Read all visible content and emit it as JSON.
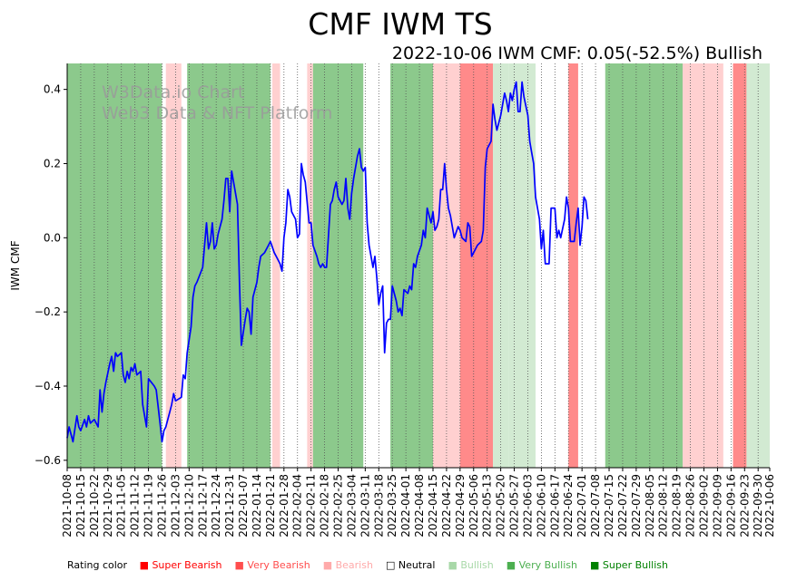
{
  "chart_data": {
    "type": "line",
    "title": "CMF IWM TS",
    "subtitle": "2022-10-06 IWM CMF: 0.05(-52.5%) Bullish",
    "ylabel": "IWM CMF",
    "xlabel": "",
    "ylim": [
      -0.62,
      0.47
    ],
    "yticks": [
      -0.6,
      -0.4,
      -0.2,
      0.0,
      0.2,
      0.4
    ],
    "ytick_labels": [
      "−0.6",
      "−0.4",
      "−0.2",
      "0.0",
      "0.2",
      "0.4"
    ],
    "x_start": "2021-10-08",
    "x_end": "2022-10-06",
    "xtick_labels": [
      "2021-10-08",
      "2021-10-15",
      "2021-10-22",
      "2021-10-29",
      "2021-11-05",
      "2021-11-12",
      "2021-11-19",
      "2021-11-26",
      "2021-12-03",
      "2021-12-10",
      "2021-12-17",
      "2021-12-24",
      "2021-12-31",
      "2022-01-07",
      "2022-01-14",
      "2022-01-21",
      "2022-01-28",
      "2022-02-04",
      "2022-02-11",
      "2022-02-18",
      "2022-02-25",
      "2022-03-04",
      "2022-03-11",
      "2022-03-18",
      "2022-03-25",
      "2022-04-01",
      "2022-04-08",
      "2022-04-15",
      "2022-04-22",
      "2022-04-29",
      "2022-05-06",
      "2022-05-13",
      "2022-05-20",
      "2022-05-27",
      "2022-06-03",
      "2022-06-10",
      "2022-06-17",
      "2022-06-24",
      "2022-07-01",
      "2022-07-08",
      "2022-07-15",
      "2022-07-22",
      "2022-07-29",
      "2022-08-05",
      "2022-08-12",
      "2022-08-19",
      "2022-08-26",
      "2022-09-02",
      "2022-09-09",
      "2022-09-16",
      "2022-09-23",
      "2022-09-30",
      "2022-10-06"
    ],
    "series": [
      {
        "name": "IWM CMF",
        "color": "#0000ff",
        "points": [
          [
            "2021-10-08",
            -0.54
          ],
          [
            "2021-10-09",
            -0.51
          ],
          [
            "2021-10-11",
            -0.55
          ],
          [
            "2021-10-13",
            -0.48
          ],
          [
            "2021-10-14",
            -0.51
          ],
          [
            "2021-10-15",
            -0.52
          ],
          [
            "2021-10-17",
            -0.49
          ],
          [
            "2021-10-18",
            -0.51
          ],
          [
            "2021-10-19",
            -0.48
          ],
          [
            "2021-10-20",
            -0.5
          ],
          [
            "2021-10-22",
            -0.49
          ],
          [
            "2021-10-24",
            -0.51
          ],
          [
            "2021-10-25",
            -0.41
          ],
          [
            "2021-10-26",
            -0.47
          ],
          [
            "2021-10-27",
            -0.42
          ],
          [
            "2021-10-28",
            -0.39
          ],
          [
            "2021-10-30",
            -0.34
          ],
          [
            "2021-10-31",
            -0.32
          ],
          [
            "2021-11-01",
            -0.36
          ],
          [
            "2021-11-02",
            -0.31
          ],
          [
            "2021-11-03",
            -0.32
          ],
          [
            "2021-11-05",
            -0.31
          ],
          [
            "2021-11-06",
            -0.37
          ],
          [
            "2021-11-07",
            -0.39
          ],
          [
            "2021-11-08",
            -0.36
          ],
          [
            "2021-11-09",
            -0.38
          ],
          [
            "2021-11-10",
            -0.35
          ],
          [
            "2021-11-11",
            -0.36
          ],
          [
            "2021-11-12",
            -0.34
          ],
          [
            "2021-11-13",
            -0.37
          ],
          [
            "2021-11-15",
            -0.36
          ],
          [
            "2021-11-16",
            -0.45
          ],
          [
            "2021-11-17",
            -0.48
          ],
          [
            "2021-11-18",
            -0.51
          ],
          [
            "2021-11-19",
            -0.38
          ],
          [
            "2021-11-22",
            -0.4
          ],
          [
            "2021-11-23",
            -0.41
          ],
          [
            "2021-11-25",
            -0.5
          ],
          [
            "2021-11-26",
            -0.55
          ],
          [
            "2021-11-27",
            -0.52
          ],
          [
            "2021-11-28",
            -0.51
          ],
          [
            "2021-11-30",
            -0.47
          ],
          [
            "2021-12-01",
            -0.45
          ],
          [
            "2021-12-02",
            -0.42
          ],
          [
            "2021-12-03",
            -0.44
          ],
          [
            "2021-12-06",
            -0.43
          ],
          [
            "2021-12-07",
            -0.37
          ],
          [
            "2021-12-08",
            -0.38
          ],
          [
            "2021-12-09",
            -0.31
          ],
          [
            "2021-12-11",
            -0.24
          ],
          [
            "2021-12-12",
            -0.16
          ],
          [
            "2021-12-13",
            -0.13
          ],
          [
            "2021-12-14",
            -0.12
          ],
          [
            "2021-12-17",
            -0.08
          ],
          [
            "2021-12-18",
            -0.02
          ],
          [
            "2021-12-19",
            0.04
          ],
          [
            "2021-12-20",
            -0.03
          ],
          [
            "2021-12-21",
            -0.01
          ],
          [
            "2021-12-22",
            0.04
          ],
          [
            "2021-12-23",
            -0.03
          ],
          [
            "2021-12-24",
            -0.02
          ],
          [
            "2021-12-25",
            0.01
          ],
          [
            "2021-12-27",
            0.05
          ],
          [
            "2021-12-28",
            0.1
          ],
          [
            "2021-12-29",
            0.16
          ],
          [
            "2021-12-30",
            0.16
          ],
          [
            "2021-12-31",
            0.07
          ],
          [
            "2022-01-01",
            0.18
          ],
          [
            "2022-01-04",
            0.09
          ],
          [
            "2022-01-05",
            -0.12
          ],
          [
            "2022-01-06",
            -0.29
          ],
          [
            "2022-01-08",
            -0.22
          ],
          [
            "2022-01-09",
            -0.19
          ],
          [
            "2022-01-10",
            -0.2
          ],
          [
            "2022-01-11",
            -0.26
          ],
          [
            "2022-01-12",
            -0.16
          ],
          [
            "2022-01-14",
            -0.12
          ],
          [
            "2022-01-15",
            -0.08
          ],
          [
            "2022-01-16",
            -0.05
          ],
          [
            "2022-01-18",
            -0.04
          ],
          [
            "2022-01-20",
            -0.02
          ],
          [
            "2022-01-21",
            -0.01
          ],
          [
            "2022-01-23",
            -0.04
          ],
          [
            "2022-01-24",
            -0.05
          ],
          [
            "2022-01-26",
            -0.07
          ],
          [
            "2022-01-27",
            -0.09
          ],
          [
            "2022-01-28",
            0.0
          ],
          [
            "2022-01-29",
            0.04
          ],
          [
            "2022-01-30",
            0.13
          ],
          [
            "2022-01-31",
            0.11
          ],
          [
            "2022-02-01",
            0.07
          ],
          [
            "2022-02-03",
            0.05
          ],
          [
            "2022-02-04",
            0.0
          ],
          [
            "2022-02-05",
            0.01
          ],
          [
            "2022-02-06",
            0.2
          ],
          [
            "2022-02-07",
            0.17
          ],
          [
            "2022-02-08",
            0.15
          ],
          [
            "2022-02-10",
            0.04
          ],
          [
            "2022-02-11",
            0.04
          ],
          [
            "2022-02-12",
            -0.02
          ],
          [
            "2022-02-14",
            -0.05
          ],
          [
            "2022-02-15",
            -0.07
          ],
          [
            "2022-02-16",
            -0.08
          ],
          [
            "2022-02-17",
            -0.07
          ],
          [
            "2022-02-18",
            -0.08
          ],
          [
            "2022-02-19",
            -0.08
          ],
          [
            "2022-02-21",
            0.09
          ],
          [
            "2022-02-22",
            0.1
          ],
          [
            "2022-02-23",
            0.13
          ],
          [
            "2022-02-24",
            0.15
          ],
          [
            "2022-02-25",
            0.11
          ],
          [
            "2022-02-27",
            0.09
          ],
          [
            "2022-02-28",
            0.1
          ],
          [
            "2022-03-01",
            0.16
          ],
          [
            "2022-03-02",
            0.08
          ],
          [
            "2022-03-03",
            0.05
          ],
          [
            "2022-03-04",
            0.12
          ],
          [
            "2022-03-05",
            0.16
          ],
          [
            "2022-03-07",
            0.22
          ],
          [
            "2022-03-08",
            0.24
          ],
          [
            "2022-03-09",
            0.19
          ],
          [
            "2022-03-10",
            0.18
          ],
          [
            "2022-03-11",
            0.19
          ],
          [
            "2022-03-12",
            0.04
          ],
          [
            "2022-03-13",
            -0.02
          ],
          [
            "2022-03-15",
            -0.08
          ],
          [
            "2022-03-16",
            -0.05
          ],
          [
            "2022-03-17",
            -0.11
          ],
          [
            "2022-03-18",
            -0.18
          ],
          [
            "2022-03-19",
            -0.15
          ],
          [
            "2022-03-20",
            -0.13
          ],
          [
            "2022-03-21",
            -0.31
          ],
          [
            "2022-03-22",
            -0.23
          ],
          [
            "2022-03-23",
            -0.22
          ],
          [
            "2022-03-24",
            -0.22
          ],
          [
            "2022-03-25",
            -0.13
          ],
          [
            "2022-03-27",
            -0.17
          ],
          [
            "2022-03-28",
            -0.2
          ],
          [
            "2022-03-29",
            -0.19
          ],
          [
            "2022-03-30",
            -0.21
          ],
          [
            "2022-03-31",
            -0.14
          ],
          [
            "2022-04-02",
            -0.15
          ],
          [
            "2022-04-03",
            -0.13
          ],
          [
            "2022-04-04",
            -0.14
          ],
          [
            "2022-04-05",
            -0.07
          ],
          [
            "2022-04-06",
            -0.08
          ],
          [
            "2022-04-07",
            -0.05
          ],
          [
            "2022-04-09",
            -0.02
          ],
          [
            "2022-04-10",
            0.02
          ],
          [
            "2022-04-11",
            0.0
          ],
          [
            "2022-04-12",
            0.08
          ],
          [
            "2022-04-13",
            0.06
          ],
          [
            "2022-04-14",
            0.04
          ],
          [
            "2022-04-15",
            0.07
          ],
          [
            "2022-04-16",
            0.02
          ],
          [
            "2022-04-17",
            0.03
          ],
          [
            "2022-04-18",
            0.05
          ],
          [
            "2022-04-19",
            0.13
          ],
          [
            "2022-04-20",
            0.13
          ],
          [
            "2022-04-21",
            0.2
          ],
          [
            "2022-04-22",
            0.13
          ],
          [
            "2022-04-23",
            0.08
          ],
          [
            "2022-04-24",
            0.06
          ],
          [
            "2022-04-26",
            0.0
          ],
          [
            "2022-04-28",
            0.03
          ],
          [
            "2022-04-29",
            0.02
          ],
          [
            "2022-04-30",
            0.0
          ],
          [
            "2022-05-02",
            -0.01
          ],
          [
            "2022-05-03",
            0.04
          ],
          [
            "2022-05-04",
            0.03
          ],
          [
            "2022-05-05",
            -0.05
          ],
          [
            "2022-05-06",
            -0.04
          ],
          [
            "2022-05-08",
            -0.02
          ],
          [
            "2022-05-10",
            -0.01
          ],
          [
            "2022-05-11",
            0.02
          ],
          [
            "2022-05-12",
            0.19
          ],
          [
            "2022-05-13",
            0.24
          ],
          [
            "2022-05-15",
            0.26
          ],
          [
            "2022-05-16",
            0.36
          ],
          [
            "2022-05-17",
            0.32
          ],
          [
            "2022-05-18",
            0.29
          ],
          [
            "2022-05-20",
            0.33
          ],
          [
            "2022-05-22",
            0.39
          ],
          [
            "2022-05-23",
            0.37
          ],
          [
            "2022-05-24",
            0.34
          ],
          [
            "2022-05-25",
            0.39
          ],
          [
            "2022-05-26",
            0.37
          ],
          [
            "2022-05-27",
            0.4
          ],
          [
            "2022-05-28",
            0.42
          ],
          [
            "2022-05-29",
            0.34
          ],
          [
            "2022-05-30",
            0.34
          ],
          [
            "2022-05-31",
            0.42
          ],
          [
            "2022-06-01",
            0.38
          ],
          [
            "2022-06-03",
            0.33
          ],
          [
            "2022-06-04",
            0.26
          ],
          [
            "2022-06-05",
            0.23
          ],
          [
            "2022-06-06",
            0.2
          ],
          [
            "2022-06-07",
            0.11
          ],
          [
            "2022-06-09",
            0.05
          ],
          [
            "2022-06-10",
            -0.03
          ],
          [
            "2022-06-11",
            0.02
          ],
          [
            "2022-06-12",
            -0.07
          ],
          [
            "2022-06-14",
            -0.07
          ],
          [
            "2022-06-15",
            0.08
          ],
          [
            "2022-06-17",
            0.08
          ],
          [
            "2022-06-18",
            0.0
          ],
          [
            "2022-06-19",
            0.02
          ],
          [
            "2022-06-20",
            0.0
          ],
          [
            "2022-06-22",
            0.05
          ],
          [
            "2022-06-23",
            0.11
          ],
          [
            "2022-06-24",
            0.08
          ],
          [
            "2022-06-25",
            -0.01
          ],
          [
            "2022-06-26",
            -0.01
          ],
          [
            "2022-06-27",
            -0.01
          ],
          [
            "2022-06-28",
            0.04
          ],
          [
            "2022-06-29",
            0.08
          ],
          [
            "2022-06-30",
            -0.02
          ],
          [
            "2022-07-01",
            0.03
          ],
          [
            "2022-07-02",
            0.11
          ],
          [
            "2022-07-03",
            0.1
          ],
          [
            "2022-07-04",
            0.05
          ]
        ]
      }
    ],
    "rating_periods": [
      {
        "start": "2021-10-08",
        "end": "2021-11-26",
        "rating": "Very Bullish"
      },
      {
        "start": "2021-11-28",
        "end": "2021-12-06",
        "rating": "Bearish"
      },
      {
        "start": "2021-12-09",
        "end": "2022-01-21",
        "rating": "Very Bullish"
      },
      {
        "start": "2022-01-22",
        "end": "2022-01-26",
        "rating": "Bearish"
      },
      {
        "start": "2022-02-09",
        "end": "2022-02-12",
        "rating": "Bearish"
      },
      {
        "start": "2022-02-12",
        "end": "2022-03-10",
        "rating": "Very Bullish"
      },
      {
        "start": "2022-03-24",
        "end": "2022-04-15",
        "rating": "Very Bullish"
      },
      {
        "start": "2022-04-15",
        "end": "2022-04-29",
        "rating": "Bearish"
      },
      {
        "start": "2022-04-29",
        "end": "2022-05-16",
        "rating": "Very Bearish"
      },
      {
        "start": "2022-05-16",
        "end": "2022-05-24",
        "rating": "Bullish"
      },
      {
        "start": "2022-05-24",
        "end": "2022-06-07",
        "rating": "Bullish"
      },
      {
        "start": "2022-06-24",
        "end": "2022-06-29",
        "rating": "Very Bearish"
      },
      {
        "start": "2022-07-13",
        "end": "2022-08-22",
        "rating": "Very Bullish"
      },
      {
        "start": "2022-08-22",
        "end": "2022-09-12",
        "rating": "Bearish"
      },
      {
        "start": "2022-09-17",
        "end": "2022-09-24",
        "rating": "Very Bearish"
      },
      {
        "start": "2022-09-24",
        "end": "2022-10-06",
        "rating": "Bullish"
      }
    ]
  },
  "watermark": {
    "line1": "W3Data.io Chart",
    "line2": "Web3 Data & NFT Platform"
  },
  "legend": {
    "label": "Rating color",
    "items": [
      {
        "text": "Super Bearish",
        "color": "#ff0000"
      },
      {
        "text": "Very Bearish",
        "color": "#ff4d4d"
      },
      {
        "text": "Bearish",
        "color": "#ffaaaa"
      },
      {
        "text": "Neutral",
        "color": "#000000"
      },
      {
        "text": "Bullish",
        "color": "#a8d8a8"
      },
      {
        "text": "Very Bullish",
        "color": "#4caf50"
      },
      {
        "text": "Super Bullish",
        "color": "#008000"
      }
    ]
  },
  "colors": {
    "Super Bearish": "#ff5555",
    "Very Bearish": "#ff8a8a",
    "Bearish": "#ffd0d0",
    "Bullish": "#d2ead2",
    "Very Bullish": "#8cc98c",
    "Super Bullish": "#6fbb6f",
    "line": "#0000ff"
  }
}
